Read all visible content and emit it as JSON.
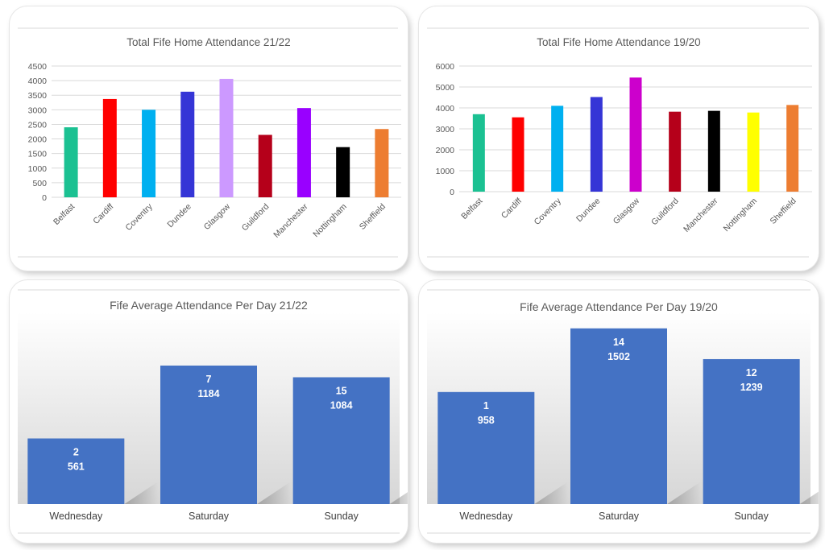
{
  "chart_data": [
    {
      "type": "bar",
      "title": "Total Fife Home Attendance 21/22",
      "categories": [
        "Belfast",
        "Cardiff",
        "Coventry",
        "Dundee",
        "Glasgow",
        "Guildford",
        "Manchester",
        "Nottingham",
        "Sheffield"
      ],
      "values": [
        2400,
        3370,
        3000,
        3620,
        4060,
        2140,
        3060,
        1720,
        2340
      ],
      "colors": [
        "#1bc192",
        "#ff0000",
        "#00b0f0",
        "#3535d6",
        "#cc99ff",
        "#b5001a",
        "#9900ff",
        "#000000",
        "#ed7d31"
      ],
      "ylim": [
        0,
        4500
      ],
      "yticks": [
        "0",
        "500",
        "1000",
        "1500",
        "2000",
        "2500",
        "3000",
        "3500",
        "4000",
        "4500"
      ],
      "grid": true,
      "xlabel": "",
      "ylabel": ""
    },
    {
      "type": "bar",
      "title": "Total Fife Home Attendance 19/20",
      "categories": [
        "Belfast",
        "Cardiff",
        "Coventry",
        "Dundee",
        "Glasgow",
        "Guildford",
        "Manchester",
        "Nottingham",
        "Sheffield"
      ],
      "values": [
        3700,
        3550,
        4100,
        4520,
        5450,
        3820,
        3860,
        3780,
        4140
      ],
      "colors": [
        "#1bc192",
        "#ff0000",
        "#00b0f0",
        "#3535d6",
        "#cc00cc",
        "#b5001a",
        "#000000",
        "#ffff00",
        "#ed7d31"
      ],
      "ylim": [
        0,
        6000
      ],
      "yticks": [
        "0",
        "1000",
        "2000",
        "3000",
        "4000",
        "5000",
        "6000"
      ],
      "grid": true,
      "xlabel": "",
      "ylabel": ""
    },
    {
      "type": "bar",
      "title": "Fife Average Attendance Per Day 21/22",
      "categories": [
        "Wednesday",
        "Saturday",
        "Sunday"
      ],
      "series": [
        {
          "values": [
            2,
            7,
            15
          ]
        },
        {
          "values": [
            561,
            1184,
            1084
          ]
        }
      ],
      "color": "#4472c4",
      "ylim": [
        0,
        1700
      ],
      "grid": false,
      "xlabel": "",
      "ylabel": ""
    },
    {
      "type": "bar",
      "title": "Fife Average Attendance Per Day 19/20",
      "categories": [
        "Wednesday",
        "Saturday",
        "Sunday"
      ],
      "series": [
        {
          "values": [
            1,
            14,
            12
          ]
        },
        {
          "values": [
            958,
            1502,
            1239
          ]
        }
      ],
      "color": "#4472c4",
      "ylim": [
        0,
        1700
      ],
      "grid": false,
      "xlabel": "",
      "ylabel": ""
    }
  ]
}
